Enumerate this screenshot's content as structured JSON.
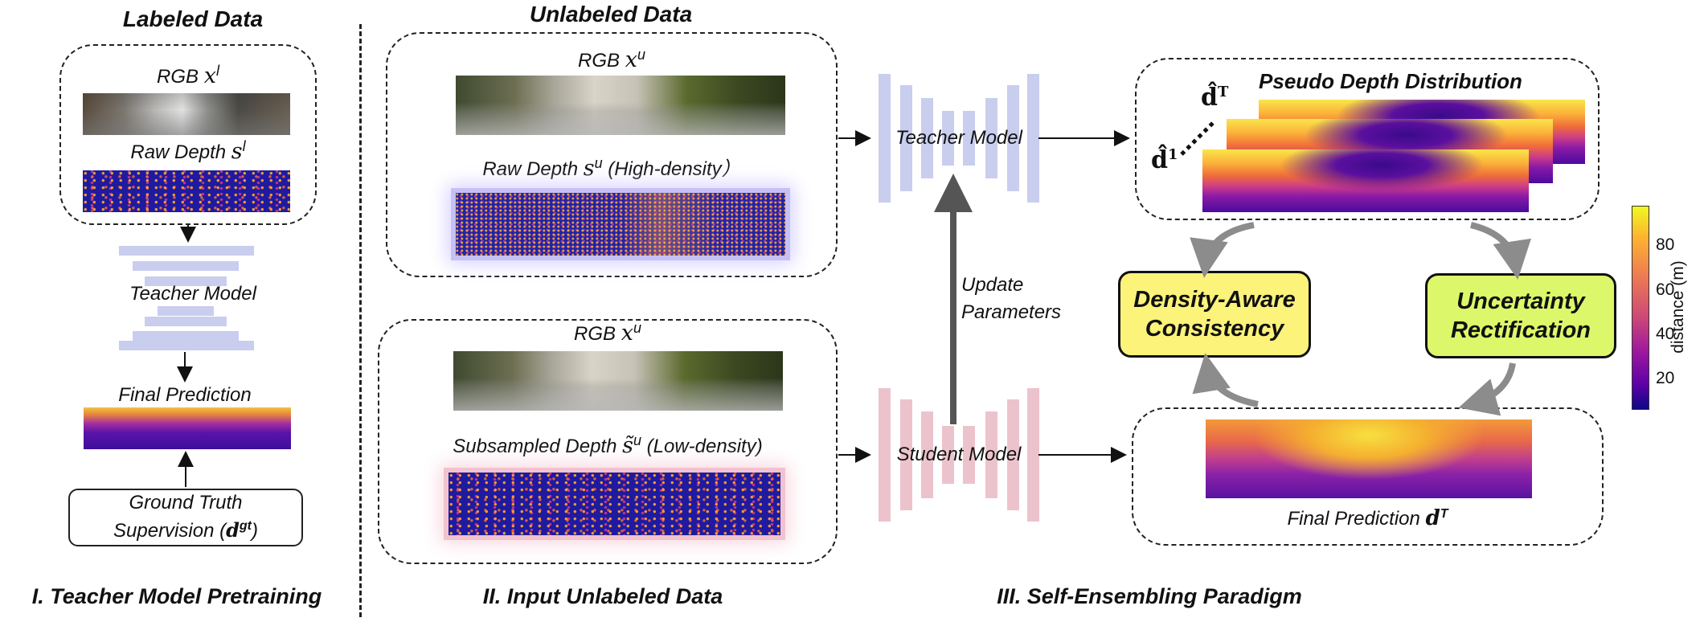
{
  "section1": {
    "heading": "Labeled Data",
    "rgb_label": "RGB",
    "rgb_symbol": "x",
    "rgb_sup": "l",
    "raw_depth_label": "Raw Depth",
    "raw_depth_symbol": "s",
    "raw_depth_sup": "l",
    "teacher_label": "Teacher Model",
    "final_pred_label": "Final Prediction",
    "gt_line1": "Ground Truth",
    "gt_line2": "Supervision (",
    "gt_symbol": "d",
    "gt_sup": "gt",
    "gt_close": ")",
    "caption": "I. Teacher Model Pretraining"
  },
  "section2": {
    "heading": "Unlabeled Data",
    "rgb_label": "RGB",
    "rgb_symbol": "x",
    "rgb_sup": "u",
    "raw_depth_label": "Raw Depth",
    "raw_depth_symbol": "s",
    "raw_depth_sup": "u",
    "raw_depth_note": "(High-density）",
    "rgb2_label": "RGB",
    "rgb2_symbol": "x",
    "rgb2_sup": "u",
    "sub_depth_label": "Subsampled Depth",
    "sub_depth_symbol": "s̃",
    "sub_depth_sup": "u",
    "sub_depth_note": "(Low-density)",
    "caption": "II. Input Unlabeled Data"
  },
  "section3": {
    "teacher_label": "Teacher Model",
    "student_label": "Student Model",
    "update_line1": "Update",
    "update_line2": "Parameters",
    "pseudo_title": "Pseudo Depth Distribution",
    "pseudo_top_symbol": "d̂",
    "pseudo_top_sup": "T",
    "pseudo_bottom_symbol": "d̂",
    "pseudo_bottom_sup": "1",
    "consistency_line1": "Density-Aware",
    "consistency_line2": "Consistency",
    "rectification_line1": "Uncertainty",
    "rectification_line2": "Rectification",
    "final_pred_label": "Final Prediction",
    "final_pred_symbol": "d",
    "final_pred_sup": "T",
    "caption": "III. Self-Ensembling Paradigm"
  },
  "colorbar": {
    "ticks": [
      "80",
      "60",
      "40",
      "20"
    ],
    "label": "distance (m)"
  },
  "colors": {
    "teacher_bars": "#c9cdee",
    "student_bars": "#ecc3cc",
    "consistency_fill": "#fbf37a",
    "rectification_fill": "#ddf76a",
    "curved_arrows": "#8c8c8c"
  }
}
